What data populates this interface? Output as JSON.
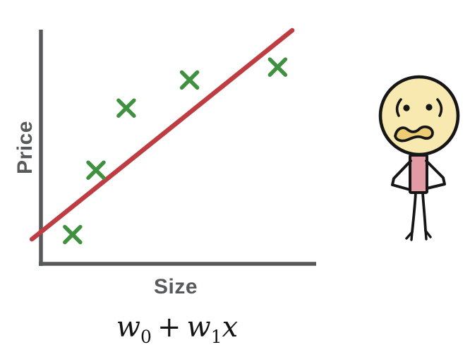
{
  "chart": {
    "ylabel": "Price",
    "xlabel": "Size"
  },
  "chart_data": {
    "type": "scatter",
    "title": "",
    "xlabel": "Size",
    "ylabel": "Price",
    "x_ticks": [],
    "y_ticks": [],
    "grid": false,
    "legend": false,
    "axis_range": {
      "x": [
        0,
        1
      ],
      "y": [
        0,
        1
      ]
    },
    "points": [
      {
        "x": 0.115,
        "y": 0.125
      },
      {
        "x": 0.2,
        "y": 0.4
      },
      {
        "x": 0.31,
        "y": 0.665
      },
      {
        "x": 0.54,
        "y": 0.785
      },
      {
        "x": 0.86,
        "y": 0.84
      }
    ],
    "regression_line": {
      "x1": -0.033,
      "y1": 0.105,
      "x2": 0.913,
      "y2": 0.997
    },
    "marker": {
      "shape": "x",
      "color": "#3f9140",
      "size": 22
    },
    "line_color": "#be3c42",
    "axis_color": "#58595b"
  },
  "formula": {
    "w0_base": "w",
    "w0_sub": "0",
    "plus": "+",
    "w1_base": "w",
    "w1_sub": "1",
    "variable": "x"
  },
  "figure": {
    "name": "worried-stick-person",
    "head_fill": "#f8e9b0",
    "mouth_fill": "#eccd74",
    "torso_fill": "#e29ba5",
    "outline": "#161616"
  }
}
